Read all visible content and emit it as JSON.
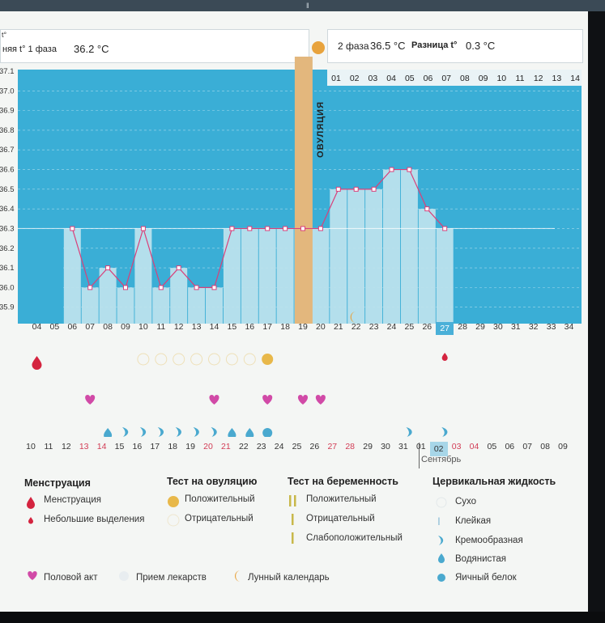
{
  "header": {
    "phase1_label": "няя t° 1 фаза",
    "phase1_value": "36.2 °C",
    "phase2_label": "2 фаза",
    "phase2_value": "36.5 °C",
    "diff_label": "Разница t°",
    "diff_value": "0.3 °C",
    "unit_corner": "t°"
  },
  "ovulation_label": "ОВУЛЯЦИЯ",
  "phase2_days": [
    "01",
    "02",
    "03",
    "04",
    "05",
    "06",
    "07",
    "08",
    "09",
    "10",
    "11",
    "12",
    "13",
    "14"
  ],
  "y_ticks": [
    "37.1",
    "37.0",
    "36.9",
    "36.8",
    "36.7",
    "36.6",
    "36.5",
    "36.4",
    "36.3",
    "36.2",
    "36.1",
    "36.0",
    "35.9",
    "35.8"
  ],
  "cycle_days": [
    "04",
    "05",
    "06",
    "07",
    "08",
    "09",
    "10",
    "11",
    "12",
    "13",
    "14",
    "15",
    "16",
    "17",
    "18",
    "19",
    "20",
    "21",
    "22",
    "23",
    "24",
    "25",
    "26",
    "27",
    "28",
    "29",
    "30",
    "31",
    "32",
    "33",
    "34"
  ],
  "current_cycle_day": "27",
  "dates": [
    {
      "d": "10",
      "c": "#333"
    },
    {
      "d": "11",
      "c": "#333"
    },
    {
      "d": "12",
      "c": "#333"
    },
    {
      "d": "13",
      "c": "#d23c55"
    },
    {
      "d": "14",
      "c": "#d23c55"
    },
    {
      "d": "15",
      "c": "#333"
    },
    {
      "d": "16",
      "c": "#333"
    },
    {
      "d": "17",
      "c": "#333"
    },
    {
      "d": "18",
      "c": "#333"
    },
    {
      "d": "19",
      "c": "#333"
    },
    {
      "d": "20",
      "c": "#d23c55"
    },
    {
      "d": "21",
      "c": "#d23c55"
    },
    {
      "d": "22",
      "c": "#333"
    },
    {
      "d": "23",
      "c": "#333"
    },
    {
      "d": "24",
      "c": "#333"
    },
    {
      "d": "25",
      "c": "#333"
    },
    {
      "d": "26",
      "c": "#333"
    },
    {
      "d": "27",
      "c": "#d23c55"
    },
    {
      "d": "28",
      "c": "#d23c55"
    },
    {
      "d": "29",
      "c": "#333"
    },
    {
      "d": "30",
      "c": "#333"
    },
    {
      "d": "31",
      "c": "#333"
    },
    {
      "d": "01",
      "c": "#333"
    },
    {
      "d": "02",
      "c": "#333"
    },
    {
      "d": "03",
      "c": "#d23c55"
    },
    {
      "d": "04",
      "c": "#d23c55"
    },
    {
      "d": "05",
      "c": "#333"
    },
    {
      "d": "06",
      "c": "#333"
    },
    {
      "d": "07",
      "c": "#333"
    },
    {
      "d": "08",
      "c": "#333"
    },
    {
      "d": "09",
      "c": "#333"
    }
  ],
  "month_label": "Сентябрь",
  "today_date": "02",
  "chart_data": {
    "type": "line",
    "ylim": [
      35.8,
      37.1
    ],
    "x": [
      "04",
      "05",
      "06",
      "07",
      "08",
      "09",
      "10",
      "11",
      "12",
      "13",
      "14",
      "15",
      "16",
      "17",
      "18",
      "19",
      "20",
      "21",
      "22",
      "23",
      "24",
      "25",
      "26",
      "27"
    ],
    "series": [
      {
        "values": [
          null,
          null,
          36.3,
          36.0,
          36.1,
          36.0,
          36.3,
          36.0,
          36.1,
          36.0,
          36.0,
          36.3,
          36.3,
          36.3,
          36.3,
          36.3,
          36.3,
          36.5,
          36.5,
          36.5,
          36.6,
          36.6,
          36.4,
          36.3
        ]
      }
    ],
    "coverline": 36.3,
    "ovulation_day": "20"
  },
  "ovulation_tests": {
    "negative_days": [
      "10",
      "11",
      "12",
      "13",
      "14",
      "15",
      "16"
    ],
    "positive_days": [
      "17"
    ]
  },
  "intercourse_days": [
    "07",
    "14",
    "17",
    "19",
    "20"
  ],
  "fluid_days": [
    {
      "day": "08",
      "kind": "watery"
    },
    {
      "day": "09",
      "kind": "creamy"
    },
    {
      "day": "10",
      "kind": "creamy"
    },
    {
      "day": "11",
      "kind": "creamy"
    },
    {
      "day": "12",
      "kind": "creamy"
    },
    {
      "day": "13",
      "kind": "creamy"
    },
    {
      "day": "14",
      "kind": "creamy"
    },
    {
      "day": "15",
      "kind": "watery"
    },
    {
      "day": "16",
      "kind": "watery"
    },
    {
      "day": "17",
      "kind": "eggwhite"
    },
    {
      "day": "25",
      "kind": "creamy"
    },
    {
      "day": "27",
      "kind": "creamy"
    }
  ],
  "menstruation_days": [
    {
      "day": "04",
      "kind": "heavy"
    },
    {
      "day": "27",
      "kind": "light"
    }
  ],
  "moon_day": "22",
  "colors": {
    "chart_bg": "#3aaed6",
    "bar": "#bfe3ee",
    "line": "#d9407a",
    "ovulation": "#e3b77d",
    "accent": "#e8a33d",
    "heart": "#d14aa7",
    "drop": "#4aa9cf",
    "menses": "#d4243f"
  },
  "legend": {
    "menstruation": {
      "title": "Менструация",
      "items": [
        "Менструация",
        "Небольшие выделения"
      ]
    },
    "ovulation_test": {
      "title": "Тест на овуляцию",
      "items": [
        "Положительный",
        "Отрицательный"
      ]
    },
    "pregnancy_test": {
      "title": "Тест на беременность",
      "items": [
        "Положительный",
        "Отрицательный",
        "Слабоположительный"
      ]
    },
    "cervical_fluid": {
      "title": "Цервикальная жидкость",
      "items": [
        "Сухо",
        "Клейкая",
        "Кремообразная",
        "Водянистая",
        "Яичный белок"
      ]
    },
    "bottom": [
      "Половой акт",
      "Прием лекарств",
      "Лунный календарь"
    ]
  }
}
